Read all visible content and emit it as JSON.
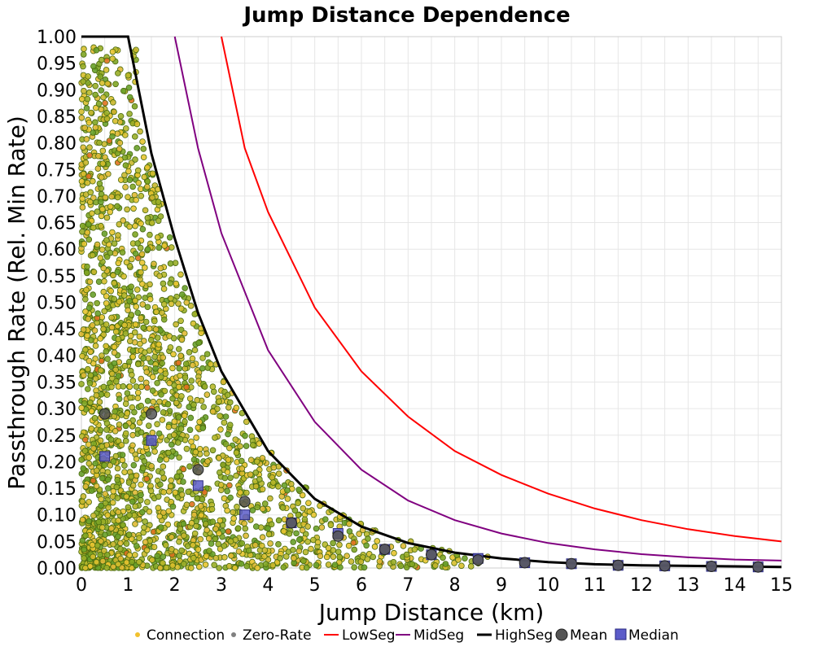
{
  "chart_data": {
    "type": "scatter",
    "title": "Jump Distance Dependence",
    "xlabel": "Jump Distance (km)",
    "ylabel": "Passthrough Rate (Rel. Min Rate)",
    "xlim": [
      0,
      15
    ],
    "ylim": [
      0,
      1
    ],
    "x_ticks": [
      "0",
      "1",
      "2",
      "3",
      "4",
      "5",
      "6",
      "7",
      "8",
      "9",
      "10",
      "11",
      "12",
      "13",
      "14",
      "15"
    ],
    "y_ticks": [
      "0.00",
      "0.05",
      "0.10",
      "0.15",
      "0.20",
      "0.25",
      "0.30",
      "0.35",
      "0.40",
      "0.45",
      "0.50",
      "0.55",
      "0.60",
      "0.65",
      "0.70",
      "0.75",
      "0.80",
      "0.85",
      "0.90",
      "0.95",
      "1.00"
    ],
    "grid": true,
    "legend_position": "bottom",
    "legend": [
      {
        "label": "Connection",
        "kind": "dot",
        "color": "#f2c12e"
      },
      {
        "label": "Zero-Rate",
        "kind": "dot",
        "color": "#808080"
      },
      {
        "label": "LowSeg",
        "kind": "line",
        "color": "#ff0000"
      },
      {
        "label": "MidSeg",
        "kind": "line",
        "color": "#800080"
      },
      {
        "label": "HighSeg",
        "kind": "line",
        "color": "#000000"
      },
      {
        "label": "Mean",
        "kind": "circle",
        "color": "#555555"
      },
      {
        "label": "Median",
        "kind": "square",
        "color": "#5c5cc9"
      }
    ],
    "curves": [
      {
        "name": "LowSeg",
        "color": "#ff0000",
        "points": [
          [
            3.0,
            1.0
          ],
          [
            3.5,
            0.79
          ],
          [
            4.0,
            0.67
          ],
          [
            5.0,
            0.49
          ],
          [
            6.0,
            0.37
          ],
          [
            7.0,
            0.285
          ],
          [
            8.0,
            0.22
          ],
          [
            9.0,
            0.175
          ],
          [
            10.0,
            0.14
          ],
          [
            11.0,
            0.112
          ],
          [
            12.0,
            0.09
          ],
          [
            13.0,
            0.073
          ],
          [
            14.0,
            0.06
          ],
          [
            15.0,
            0.05
          ]
        ]
      },
      {
        "name": "MidSeg",
        "color": "#800080",
        "points": [
          [
            2.0,
            1.0
          ],
          [
            2.5,
            0.79
          ],
          [
            3.0,
            0.63
          ],
          [
            4.0,
            0.41
          ],
          [
            5.0,
            0.275
          ],
          [
            6.0,
            0.185
          ],
          [
            7.0,
            0.127
          ],
          [
            8.0,
            0.09
          ],
          [
            9.0,
            0.065
          ],
          [
            10.0,
            0.047
          ],
          [
            11.0,
            0.035
          ],
          [
            12.0,
            0.026
          ],
          [
            13.0,
            0.02
          ],
          [
            14.0,
            0.016
          ],
          [
            15.0,
            0.014
          ]
        ]
      },
      {
        "name": "HighSeg",
        "color": "#000000",
        "points": [
          [
            0.0,
            1.0
          ],
          [
            1.0,
            1.0
          ],
          [
            1.5,
            0.78
          ],
          [
            2.0,
            0.62
          ],
          [
            2.5,
            0.48
          ],
          [
            3.0,
            0.37
          ],
          [
            4.0,
            0.22
          ],
          [
            5.0,
            0.13
          ],
          [
            6.0,
            0.078
          ],
          [
            7.0,
            0.047
          ],
          [
            8.0,
            0.029
          ],
          [
            9.0,
            0.018
          ],
          [
            10.0,
            0.011
          ],
          [
            11.0,
            0.007
          ],
          [
            12.0,
            0.005
          ],
          [
            13.0,
            0.004
          ],
          [
            14.0,
            0.003
          ],
          [
            15.0,
            0.002
          ]
        ]
      }
    ],
    "mean": {
      "x": [
        0.5,
        1.5,
        2.5,
        3.5,
        4.5,
        5.5,
        6.5,
        7.5,
        8.5,
        9.5,
        10.5,
        11.5,
        12.5,
        13.5,
        14.5
      ],
      "y": [
        0.29,
        0.29,
        0.185,
        0.125,
        0.085,
        0.06,
        0.035,
        0.025,
        0.015,
        0.01,
        0.008,
        0.005,
        0.004,
        0.003,
        0.002
      ]
    },
    "median": {
      "x": [
        0.5,
        1.5,
        2.5,
        3.5,
        4.5,
        5.5,
        6.5,
        7.5,
        8.5,
        9.5,
        10.5,
        11.5,
        12.5,
        13.5,
        14.5
      ],
      "y": [
        0.21,
        0.24,
        0.155,
        0.1,
        0.085,
        0.065,
        0.035,
        0.025,
        0.018,
        0.01,
        0.008,
        0.005,
        0.004,
        0.003,
        0.002
      ]
    },
    "scatter_description_series": {
      "name": "Connection",
      "color_range": [
        "#f2c12e",
        "#5a9e1f"
      ]
    }
  }
}
